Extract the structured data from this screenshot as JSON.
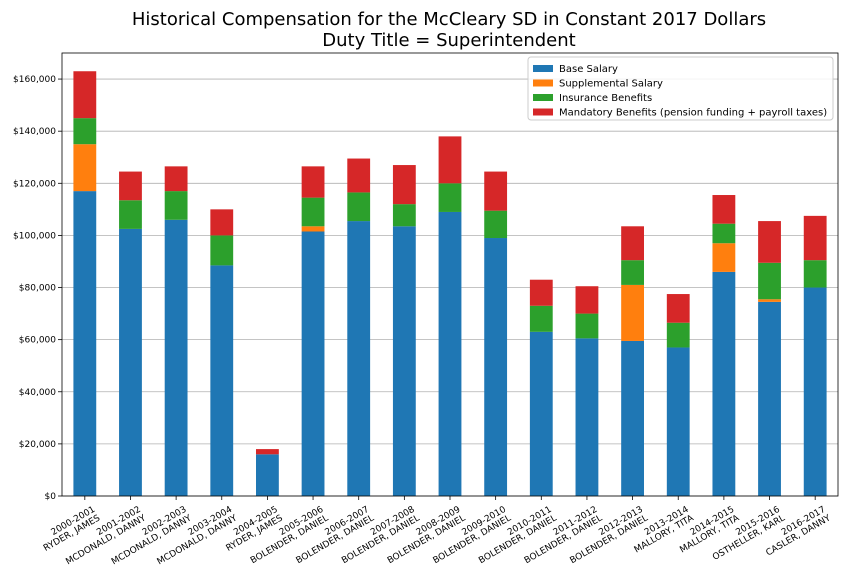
{
  "chart_data": {
    "type": "bar",
    "stacked": true,
    "title_line1": "Historical Compensation for the McCleary SD in Constant 2017 Dollars",
    "title_line2": "Duty Title = Superintendent",
    "xlabel": "",
    "ylabel": "",
    "ylim": [
      0,
      170000
    ],
    "yticks": [
      0,
      20000,
      40000,
      60000,
      80000,
      100000,
      120000,
      140000,
      160000
    ],
    "ytick_labels": [
      "$0",
      "$20,000",
      "$40,000",
      "$60,000",
      "$80,000",
      "$100,000",
      "$120,000",
      "$140,000",
      "$160,000"
    ],
    "grid": "horizontal",
    "legend_position": "top-right",
    "categories": [
      [
        "2000-2001",
        "RYDER, JAMES"
      ],
      [
        "2001-2002",
        "MCDONALD, DANNY"
      ],
      [
        "2002-2003",
        "MCDONALD, DANNY"
      ],
      [
        "2003-2004",
        "MCDONALD, DANNY"
      ],
      [
        "2004-2005",
        "RYDER, JAMES"
      ],
      [
        "2005-2006",
        "BOLENDER, DANIEL"
      ],
      [
        "2006-2007",
        "BOLENDER, DANIEL"
      ],
      [
        "2007-2008",
        "BOLENDER, DANIEL"
      ],
      [
        "2008-2009",
        "BOLENDER, DANIEL"
      ],
      [
        "2009-2010",
        "BOLENDER, DANIEL"
      ],
      [
        "2010-2011",
        "BOLENDER, DANIEL"
      ],
      [
        "2011-2012",
        "BOLENDER, DANIEL"
      ],
      [
        "2012-2013",
        "BOLENDER, DANIEL"
      ],
      [
        "2013-2014",
        "MALLORY, TITA"
      ],
      [
        "2014-2015",
        "MALLORY, TITA"
      ],
      [
        "2015-2016",
        "OSTHELLER, KARL"
      ],
      [
        "2016-2017",
        "CASLER, DANNY"
      ]
    ],
    "series": [
      {
        "name": "Base Salary",
        "color": "#1f77b4",
        "values": [
          117000,
          102500,
          106000,
          88500,
          16000,
          101500,
          105500,
          103500,
          109000,
          99000,
          63000,
          60500,
          59500,
          57000,
          86000,
          74500,
          80000
        ]
      },
      {
        "name": "Supplemental Salary",
        "color": "#ff7f0e",
        "values": [
          18000,
          0,
          0,
          0,
          0,
          2000,
          0,
          0,
          0,
          0,
          0,
          0,
          21500,
          0,
          11000,
          1000,
          0
        ]
      },
      {
        "name": "Insurance Benefits",
        "color": "#2ca02c",
        "values": [
          10000,
          11000,
          11000,
          11500,
          0,
          11000,
          11000,
          8500,
          11000,
          10500,
          10000,
          9500,
          9500,
          9500,
          7500,
          14000,
          10500
        ]
      },
      {
        "name": "Mandatory Benefits (pension funding + payroll taxes)",
        "color": "#d62728",
        "values": [
          18000,
          11000,
          9500,
          10000,
          2000,
          12000,
          13000,
          15000,
          18000,
          15000,
          10000,
          10500,
          13000,
          11000,
          11000,
          16000,
          17000
        ]
      }
    ]
  }
}
